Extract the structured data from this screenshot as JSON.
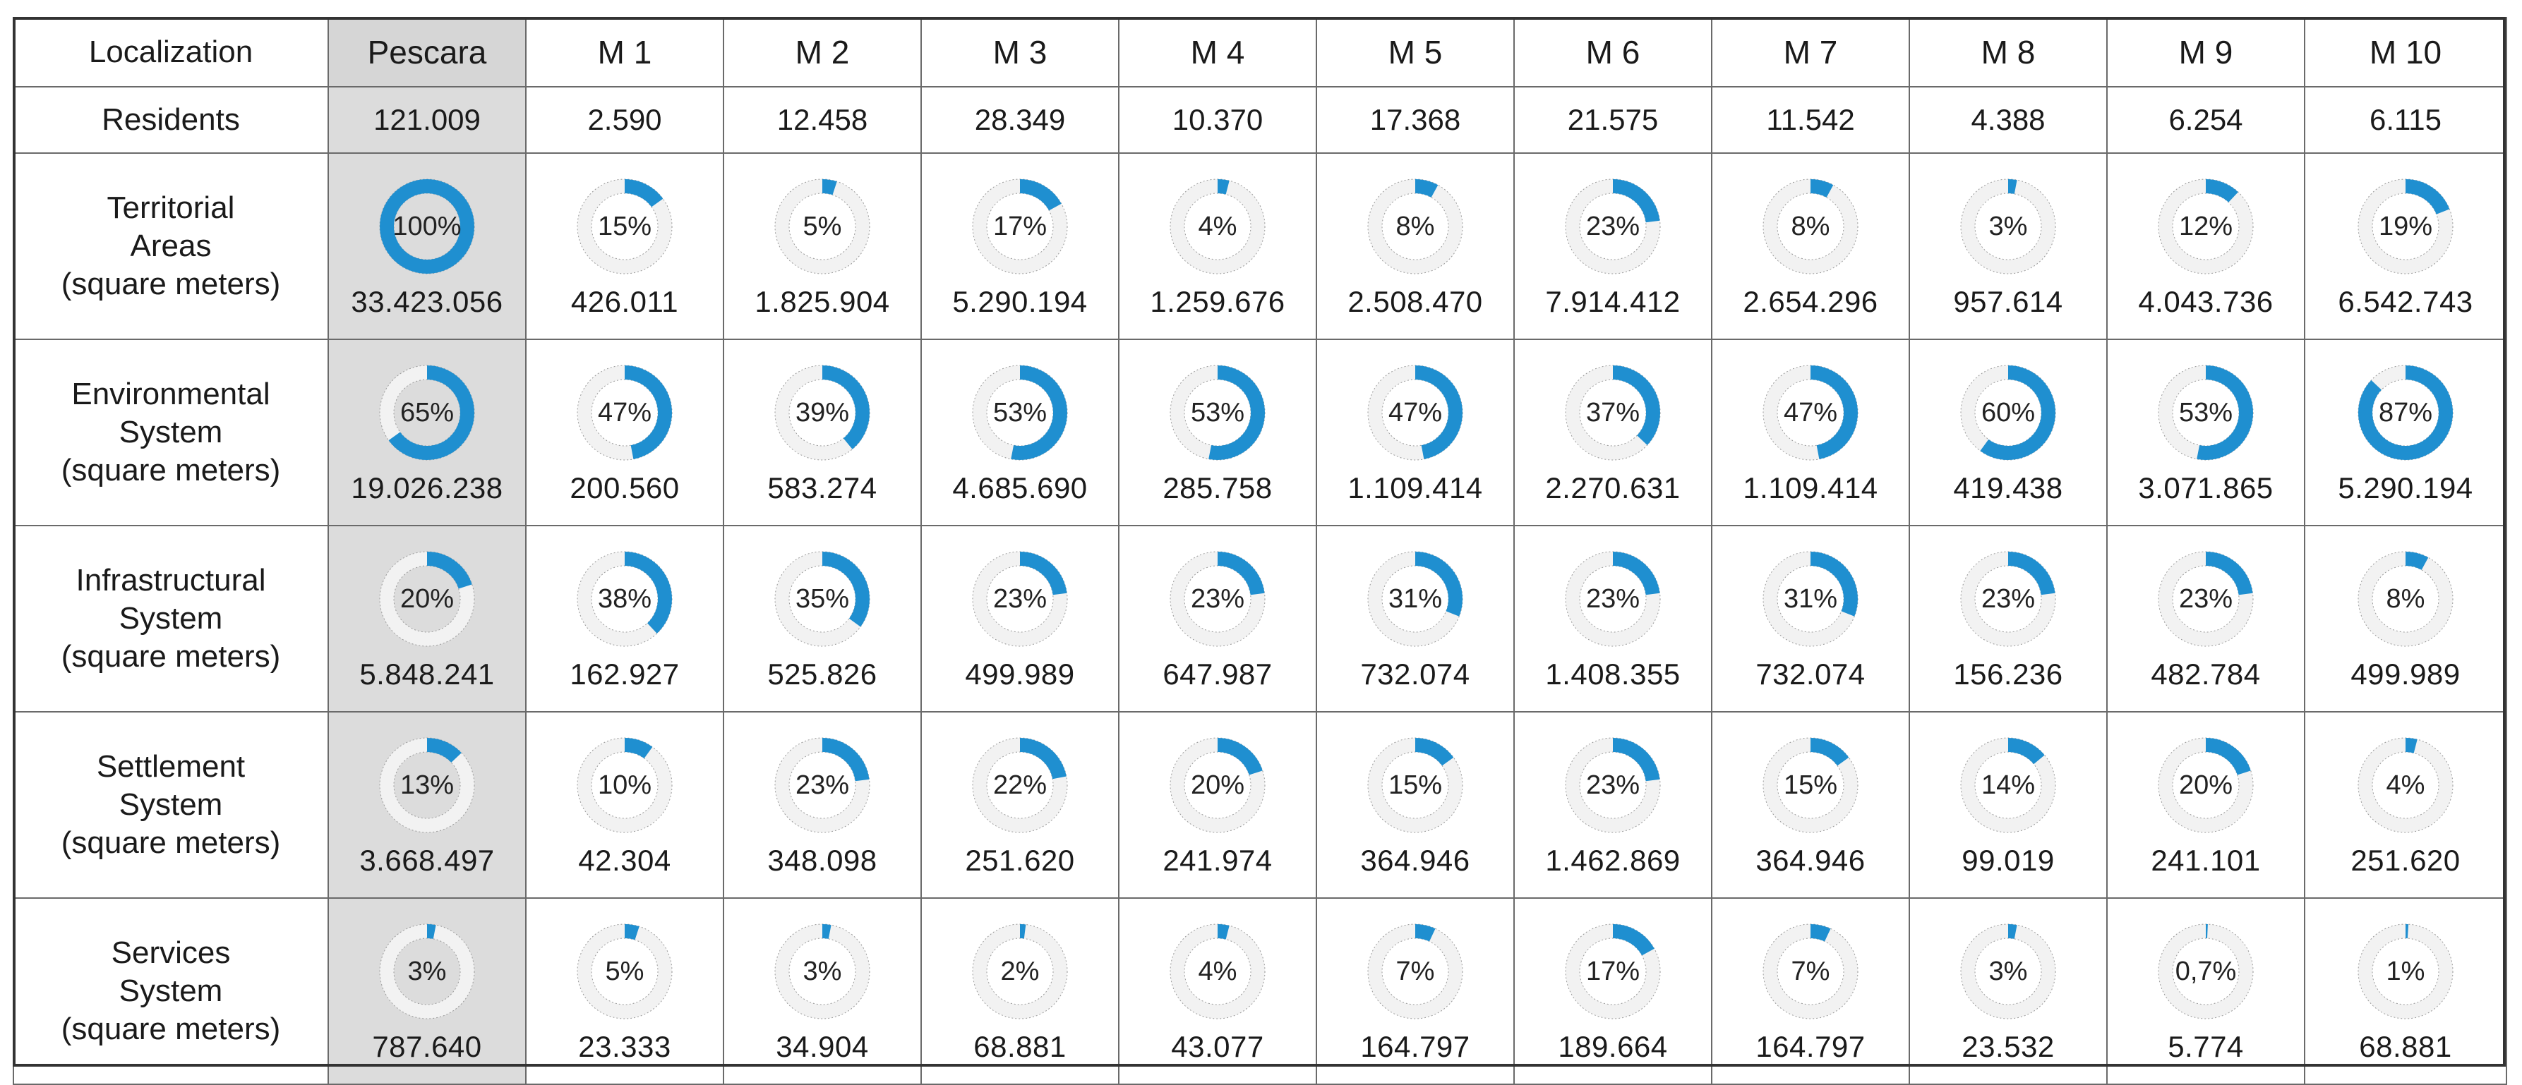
{
  "header": {
    "corner_label": "Localization",
    "columns": [
      "Pescara",
      "M 1",
      "M 2",
      "M 3",
      "M 4",
      "M 5",
      "M 6",
      "M 7",
      "M 8",
      "M 9",
      "M 10"
    ]
  },
  "residents": {
    "label": "Residents",
    "values": [
      "121.009",
      "2.590",
      "12.458",
      "28.349",
      "10.370",
      "17.368",
      "21.575",
      "11.542",
      "4.388",
      "6.254",
      "6.115"
    ]
  },
  "colors": {
    "accent": "#1f8fd0",
    "track": "#f2f2f2",
    "highlight_column": "#dcdcdc",
    "border": "#6a6a6a"
  },
  "chart_data": {
    "type": "table",
    "title": "",
    "columns": [
      "Pescara",
      "M 1",
      "M 2",
      "M 3",
      "M 4",
      "M 5",
      "M 6",
      "M 7",
      "M 8",
      "M 9",
      "M 10"
    ],
    "rows": [
      {
        "label_lines": [
          "Territorial",
          "Areas",
          "(square meters)"
        ],
        "percent_labels": [
          "100%",
          "15%",
          "5%",
          "17%",
          "4%",
          "8%",
          "23%",
          "8%",
          "3%",
          "12%",
          "19%"
        ],
        "percent_values": [
          100,
          15,
          5,
          17,
          4,
          8,
          23,
          8,
          3,
          12,
          19
        ],
        "absolute": [
          "33.423.056",
          "426.011",
          "1.825.904",
          "5.290.194",
          "1.259.676",
          "2.508.470",
          "7.914.412",
          "2.654.296",
          "957.614",
          "4.043.736",
          "6.542.743"
        ]
      },
      {
        "label_lines": [
          "Environmental",
          "System",
          "(square meters)"
        ],
        "percent_labels": [
          "65%",
          "47%",
          "39%",
          "53%",
          "53%",
          "47%",
          "37%",
          "47%",
          "60%",
          "53%",
          "87%"
        ],
        "percent_values": [
          65,
          47,
          39,
          53,
          53,
          47,
          37,
          47,
          60,
          53,
          87
        ],
        "absolute": [
          "19.026.238",
          "200.560",
          "583.274",
          "4.685.690",
          "285.758",
          "1.109.414",
          "2.270.631",
          "1.109.414",
          "419.438",
          "3.071.865",
          "5.290.194"
        ]
      },
      {
        "label_lines": [
          "Infrastructural",
          "System",
          "(square meters)"
        ],
        "percent_labels": [
          "20%",
          "38%",
          "35%",
          "23%",
          "23%",
          "31%",
          "23%",
          "31%",
          "23%",
          "23%",
          "8%"
        ],
        "percent_values": [
          20,
          38,
          35,
          23,
          23,
          31,
          23,
          31,
          23,
          23,
          8
        ],
        "absolute": [
          "5.848.241",
          "162.927",
          "525.826",
          "499.989",
          "647.987",
          "732.074",
          "1.408.355",
          "732.074",
          "156.236",
          "482.784",
          "499.989"
        ]
      },
      {
        "label_lines": [
          "Settlement",
          "System",
          "(square meters)"
        ],
        "percent_labels": [
          "13%",
          "10%",
          "23%",
          "22%",
          "20%",
          "15%",
          "23%",
          "15%",
          "14%",
          "20%",
          "4%"
        ],
        "percent_values": [
          13,
          10,
          23,
          22,
          20,
          15,
          23,
          15,
          14,
          20,
          4
        ],
        "absolute": [
          "3.668.497",
          "42.304",
          "348.098",
          "251.620",
          "241.974",
          "364.946",
          "1.462.869",
          "364.946",
          "99.019",
          "241.101",
          "251.620"
        ]
      },
      {
        "label_lines": [
          "Services",
          "System",
          "(square meters)"
        ],
        "percent_labels": [
          "3%",
          "5%",
          "3%",
          "2%",
          "4%",
          "7%",
          "17%",
          "7%",
          "3%",
          "0,7%",
          "1%"
        ],
        "percent_values": [
          3,
          5,
          3,
          2,
          4,
          7,
          17,
          7,
          3,
          0.7,
          1
        ],
        "absolute": [
          "787.640",
          "23.333",
          "34.904",
          "68.881",
          "43.077",
          "164.797",
          "189.664",
          "164.797",
          "23.532",
          "5.774",
          "68.881"
        ]
      }
    ]
  }
}
